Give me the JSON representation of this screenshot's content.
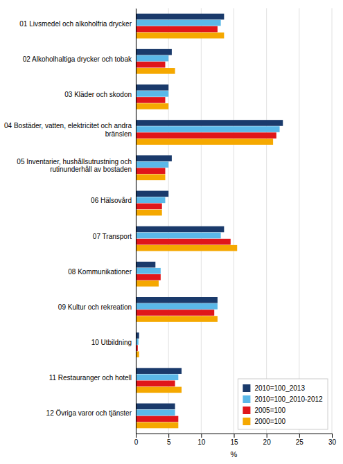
{
  "chart_data": {
    "type": "bar",
    "orientation": "horizontal",
    "categories": [
      "01 Livsmedel och alkoholfria drycker",
      "02 Alkoholhaltiga drycker och tobak",
      "03 Kläder och skodon",
      "04 Bostäder, vatten, elektricitet och andra\nbränslen",
      "05 Inventarier, hushållsutrustning och\nrutinunderhåll av bostaden",
      "06 Hälsovård",
      "07 Transport",
      "08 Kommunikationer",
      "09 Kultur och rekreation",
      "10 Utbildning",
      "11 Restauranger och hotell",
      "12 Övriga varor och tjänster"
    ],
    "series": [
      {
        "name": "2010=100_2013",
        "color": "#1a3a6b",
        "values": [
          13.5,
          5.5,
          5.0,
          22.5,
          5.5,
          5.0,
          13.5,
          3.0,
          12.5,
          0.5,
          7.0,
          6.0
        ]
      },
      {
        "name": "2010=100_2010-2012",
        "color": "#5bb8e8",
        "values": [
          13.0,
          5.0,
          5.0,
          22.0,
          5.0,
          4.5,
          13.0,
          3.8,
          12.5,
          0.4,
          6.5,
          6.0
        ]
      },
      {
        "name": "2005=100",
        "color": "#e0161a",
        "values": [
          12.5,
          4.5,
          4.5,
          21.5,
          4.5,
          4.0,
          14.5,
          3.8,
          12.0,
          0.3,
          6.0,
          6.5
        ]
      },
      {
        "name": "2000=100",
        "color": "#f5a800",
        "values": [
          13.5,
          6.0,
          5.0,
          21.0,
          4.5,
          4.0,
          15.5,
          3.5,
          12.5,
          0.5,
          7.0,
          6.5
        ]
      }
    ],
    "xlabel": "%",
    "xlim": [
      0,
      30
    ],
    "xticks": [
      0,
      5,
      10,
      15,
      20,
      25,
      30
    ],
    "grid": true,
    "legend": "lower right"
  }
}
